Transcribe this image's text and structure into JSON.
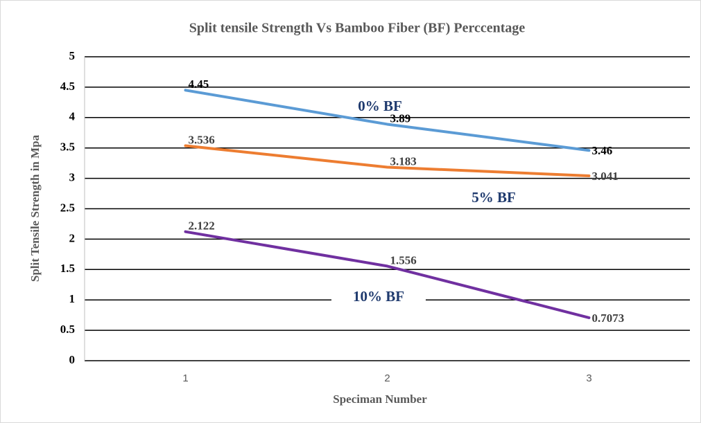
{
  "chart_data": {
    "type": "line",
    "title": "Split tensile Strength Vs Bamboo Fiber (BF) Perccentage",
    "x_label": "Speciman Number",
    "y_label": "Split Tensile Strength in Mpa",
    "categories": [
      "1",
      "2",
      "3"
    ],
    "series": [
      {
        "name": "0% BF",
        "color": "#5b9bd5",
        "values": [
          4.45,
          3.89,
          3.46
        ]
      },
      {
        "name": "5% BF",
        "color": "#ed7d31",
        "values": [
          3.536,
          3.183,
          3.041
        ]
      },
      {
        "name": "10% BF",
        "color": "#7030a0",
        "values": [
          2.122,
          1.556,
          0.7073
        ]
      }
    ],
    "ylim": [
      0,
      5
    ],
    "yticks": [
      0,
      0.5,
      1,
      1.5,
      2,
      2.5,
      3,
      3.5,
      4,
      4.5,
      5
    ],
    "grid": true
  }
}
